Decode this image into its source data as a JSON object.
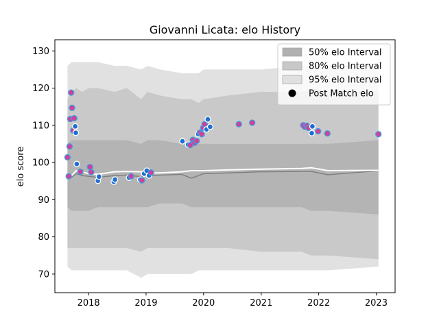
{
  "chart_data": {
    "type": "scatter",
    "title": "Giovanni Licata: elo History",
    "xlabel": "",
    "ylabel": "elo score",
    "xlim": [
      "2017-06-01",
      "2023-05-01"
    ],
    "ylim": [
      65,
      133
    ],
    "x_ticks": [
      "2018",
      "2019",
      "2020",
      "2021",
      "2022",
      "2023"
    ],
    "y_ticks": [
      70,
      80,
      90,
      100,
      110,
      120,
      130
    ],
    "legend_position": "top-right",
    "legend": [
      {
        "label": "50% elo Interval",
        "color": "#b0b0b0",
        "kind": "band"
      },
      {
        "label": "80% elo Interval",
        "color": "#c8c8c8",
        "kind": "band"
      },
      {
        "label": "95% elo Interval",
        "color": "#e0e0e0",
        "kind": "band"
      },
      {
        "label": "Post Match elo",
        "color": "#000000",
        "kind": "marker"
      }
    ],
    "colors": {
      "band95": "#e1e1e1",
      "band80": "#c9c9c9",
      "band50": "#b4b4b4",
      "mean_line": "#ffffff",
      "median_line": "#808080",
      "point_edge_pink": "#d0409a",
      "point_fill_blue": "#1f6fd1",
      "point_edge_white": "#ffffff"
    },
    "bands": {
      "dates": [
        "2017-08-20",
        "2017-09-15",
        "2017-10-15",
        "2017-11-20",
        "2018-01-01",
        "2018-03-01",
        "2018-06-15",
        "2018-09-01",
        "2018-12-01",
        "2019-01-10",
        "2019-04-01",
        "2019-08-15",
        "2019-10-15",
        "2019-12-01",
        "2020-01-01",
        "2020-06-01",
        "2021-01-01",
        "2021-09-15",
        "2021-11-15",
        "2022-03-01",
        "2023-01-15"
      ],
      "p975": [
        126,
        127,
        127,
        127,
        127,
        127,
        126,
        126,
        125,
        126,
        125,
        124,
        124,
        124,
        125,
        125,
        125,
        126,
        126,
        126,
        126
      ],
      "p90": [
        117,
        119,
        120,
        119,
        120,
        120,
        119,
        120,
        117,
        119,
        118,
        117,
        117,
        116,
        117,
        118,
        119,
        119,
        120,
        119,
        119
      ],
      "p75": [
        105,
        106,
        106,
        106,
        106,
        106,
        106,
        106,
        105,
        106,
        106,
        105,
        105,
        105,
        105,
        105,
        105,
        105,
        105,
        105,
        106
      ],
      "p25": [
        88,
        87,
        87,
        87,
        87,
        88,
        88,
        88,
        88,
        88,
        89,
        89,
        88,
        88,
        88,
        88,
        88,
        88,
        87,
        87,
        86
      ],
      "p10": [
        77,
        77,
        77,
        77,
        77,
        77,
        77,
        77,
        76,
        77,
        77,
        77,
        77,
        77,
        77,
        77,
        76,
        76,
        75,
        75,
        74
      ],
      "p025": [
        72,
        71,
        71,
        71,
        71,
        71,
        71,
        71,
        69,
        70,
        70,
        70,
        70,
        71,
        71,
        71,
        71,
        71,
        71,
        71,
        72
      ],
      "mean": [
        96.5,
        96.5,
        97.8,
        97.5,
        97.0,
        96.8,
        97.5,
        97.6,
        97.5,
        97.2,
        97.2,
        97.5,
        97.8,
        97.8,
        97.8,
        98.0,
        98.2,
        98.4,
        98.6,
        97.8,
        97.9
      ],
      "median": [
        96.0,
        96.0,
        97.0,
        96.5,
        96.3,
        96.0,
        96.5,
        96.6,
        96.2,
        96.5,
        96.6,
        96.8,
        95.8,
        96.5,
        97.0,
        97.2,
        97.5,
        97.6,
        97.6,
        96.7,
        97.8
      ]
    },
    "points": [
      {
        "x": "2017-08-20",
        "y": 101.4,
        "style": "pink"
      },
      {
        "x": "2017-08-28",
        "y": 96.3,
        "style": "pink"
      },
      {
        "x": "2017-09-02",
        "y": 104.3,
        "style": "pink"
      },
      {
        "x": "2017-09-07",
        "y": 111.7,
        "style": "pink"
      },
      {
        "x": "2017-09-12",
        "y": 118.8,
        "style": "pink"
      },
      {
        "x": "2017-09-18",
        "y": 114.7,
        "style": "pink"
      },
      {
        "x": "2017-09-25",
        "y": 108.6,
        "style": "pink"
      },
      {
        "x": "2017-10-02",
        "y": 111.9,
        "style": "pink"
      },
      {
        "x": "2017-10-08",
        "y": 109.7,
        "style": "blue"
      },
      {
        "x": "2017-10-12",
        "y": 108.0,
        "style": "blue"
      },
      {
        "x": "2017-10-18",
        "y": 99.6,
        "style": "blue"
      },
      {
        "x": "2017-11-10",
        "y": 97.5,
        "style": "pink"
      },
      {
        "x": "2018-01-10",
        "y": 98.8,
        "style": "pink"
      },
      {
        "x": "2018-01-18",
        "y": 97.4,
        "style": "pink"
      },
      {
        "x": "2018-03-01",
        "y": 95.1,
        "style": "blue"
      },
      {
        "x": "2018-03-08",
        "y": 96.2,
        "style": "blue"
      },
      {
        "x": "2018-06-10",
        "y": 94.8,
        "style": "blue"
      },
      {
        "x": "2018-06-18",
        "y": 95.4,
        "style": "blue"
      },
      {
        "x": "2018-09-15",
        "y": 95.9,
        "style": "blue"
      },
      {
        "x": "2018-09-28",
        "y": 96.3,
        "style": "pink"
      },
      {
        "x": "2018-11-25",
        "y": 95.4,
        "style": "blue"
      },
      {
        "x": "2018-12-05",
        "y": 95.2,
        "style": "pink"
      },
      {
        "x": "2018-12-20",
        "y": 97.0,
        "style": "blue"
      },
      {
        "x": "2019-01-05",
        "y": 97.8,
        "style": "blue"
      },
      {
        "x": "2019-01-20",
        "y": 96.5,
        "style": "blue"
      },
      {
        "x": "2019-02-01",
        "y": 97.3,
        "style": "pink"
      },
      {
        "x": "2019-08-20",
        "y": 105.7,
        "style": "blue"
      },
      {
        "x": "2019-09-25",
        "y": 104.8,
        "style": "blue"
      },
      {
        "x": "2019-10-08",
        "y": 104.7,
        "style": "pink"
      },
      {
        "x": "2019-10-25",
        "y": 106.1,
        "style": "pink"
      },
      {
        "x": "2019-11-05",
        "y": 105.3,
        "style": "pink"
      },
      {
        "x": "2019-11-18",
        "y": 105.8,
        "style": "pink"
      },
      {
        "x": "2019-11-28",
        "y": 107.6,
        "style": "blue"
      },
      {
        "x": "2019-12-08",
        "y": 108.0,
        "style": "pink"
      },
      {
        "x": "2019-12-20",
        "y": 107.6,
        "style": "pink"
      },
      {
        "x": "2019-12-30",
        "y": 109.3,
        "style": "pink"
      },
      {
        "x": "2020-01-08",
        "y": 110.3,
        "style": "pink"
      },
      {
        "x": "2020-01-20",
        "y": 108.9,
        "style": "blue"
      },
      {
        "x": "2020-01-28",
        "y": 111.6,
        "style": "blue"
      },
      {
        "x": "2020-02-12",
        "y": 109.6,
        "style": "blue"
      },
      {
        "x": "2020-08-12",
        "y": 110.3,
        "style": "pink"
      },
      {
        "x": "2020-11-05",
        "y": 110.7,
        "style": "pink"
      },
      {
        "x": "2021-09-25",
        "y": 110.0,
        "style": "pink"
      },
      {
        "x": "2021-10-05",
        "y": 109.6,
        "style": "pink"
      },
      {
        "x": "2021-10-18",
        "y": 109.9,
        "style": "pink"
      },
      {
        "x": "2021-10-28",
        "y": 109.3,
        "style": "pink"
      },
      {
        "x": "2021-11-18",
        "y": 107.9,
        "style": "blue"
      },
      {
        "x": "2021-11-22",
        "y": 109.7,
        "style": "blue"
      },
      {
        "x": "2021-12-28",
        "y": 108.4,
        "style": "pink"
      },
      {
        "x": "2022-02-25",
        "y": 107.8,
        "style": "pink"
      },
      {
        "x": "2023-01-15",
        "y": 107.6,
        "style": "pink"
      }
    ]
  }
}
